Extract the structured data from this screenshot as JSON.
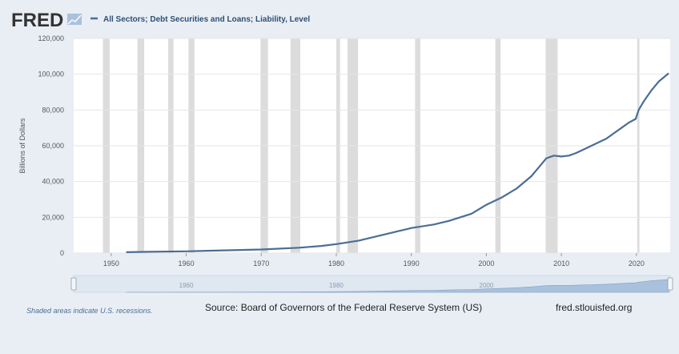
{
  "header": {
    "logo": "FRED",
    "series_label": "All Sectors; Debt Securities and Loans; Liability, Level"
  },
  "footer": {
    "recession_note": "Shaded areas indicate U.S. recessions.",
    "source": "Source: Board of Governors of the Federal Reserve System (US)",
    "site": "fred.stlouisfed.org"
  },
  "colors": {
    "line": "#4a6e94",
    "recession": "#dcdcdc",
    "plot_bg": "#ffffff",
    "page_bg": "#e9eef5",
    "navigator_fill": "#a9c1dd"
  },
  "chart_data": {
    "type": "line",
    "title": "",
    "xlabel": "",
    "ylabel": "Billions of Dollars",
    "xlim": [
      1945,
      2024.5
    ],
    "ylim": [
      0,
      120000
    ],
    "y_ticks": [
      0,
      20000,
      40000,
      60000,
      80000,
      100000,
      120000
    ],
    "y_tick_labels": [
      "0",
      "20,000",
      "40,000",
      "60,000",
      "80,000",
      "100,000",
      "120,000"
    ],
    "x_ticks": [
      1950,
      1960,
      1970,
      1980,
      1990,
      2000,
      2010,
      2020
    ],
    "x_tick_labels": [
      "1950",
      "1960",
      "1970",
      "1980",
      "1990",
      "2000",
      "2010",
      "2020"
    ],
    "navigator_labels": [
      "1960",
      "1980",
      "2000"
    ],
    "grid": true,
    "legend": "top-left",
    "recessions": [
      [
        1948.9,
        1949.8
      ],
      [
        1953.5,
        1954.4
      ],
      [
        1957.6,
        1958.3
      ],
      [
        1960.3,
        1961.1
      ],
      [
        1969.9,
        1970.9
      ],
      [
        1973.9,
        1975.2
      ],
      [
        1980.0,
        1980.5
      ],
      [
        1981.5,
        1982.9
      ],
      [
        1990.5,
        1991.2
      ],
      [
        2001.2,
        2001.9
      ],
      [
        2007.9,
        2009.5
      ],
      [
        2020.1,
        2020.4
      ]
    ],
    "series": [
      {
        "name": "All Sectors; Debt Securities and Loans; Liability, Level",
        "x": [
          1952,
          1955,
          1960,
          1965,
          1970,
          1975,
          1978,
          1980,
          1983,
          1985,
          1988,
          1990,
          1993,
          1995,
          1998,
          2000,
          2002,
          2004,
          2006,
          2007,
          2008,
          2009,
          2010,
          2011,
          2012,
          2013,
          2014,
          2015,
          2016,
          2017,
          2018,
          2019,
          2019.9,
          2020.3,
          2021,
          2022,
          2023,
          2024.3
        ],
        "y": [
          500,
          700,
          1000,
          1500,
          2000,
          3000,
          4000,
          5000,
          7000,
          9000,
          12000,
          14000,
          16000,
          18000,
          22000,
          27000,
          31000,
          36000,
          43000,
          48000,
          53000,
          54500,
          54000,
          54500,
          56000,
          58000,
          60000,
          62000,
          64000,
          67000,
          70000,
          73000,
          75000,
          80000,
          85000,
          91000,
          96000,
          100500
        ]
      }
    ]
  }
}
